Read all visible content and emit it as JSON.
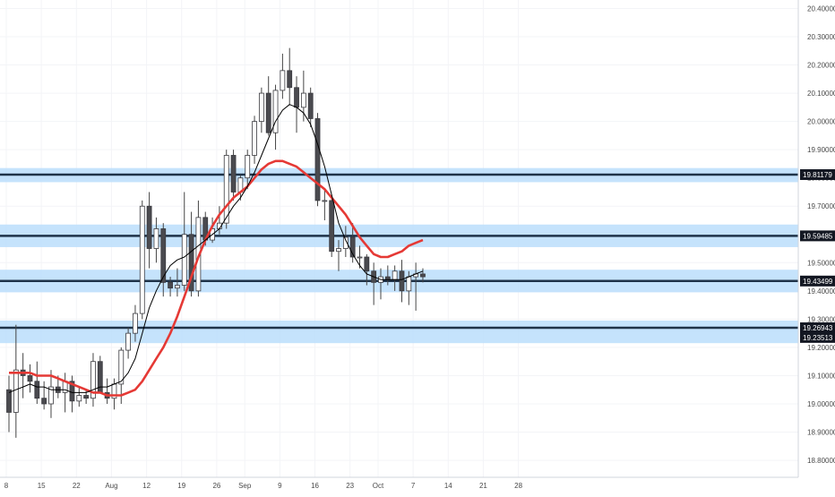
{
  "chart_data": {
    "type": "candlestick",
    "title": "",
    "ylim": [
      18.74,
      20.43
    ],
    "y_ticks": [
      "18.80000",
      "18.90000",
      "19.00000",
      "19.10000",
      "19.20000",
      "19.30000",
      "19.40000",
      "19.50000",
      "19.60000",
      "19.70000",
      "19.80000",
      "19.90000",
      "20.00000",
      "20.10000",
      "20.20000",
      "20.30000",
      "20.40000"
    ],
    "x_tick_labels": [
      {
        "label": "8",
        "index": 0
      },
      {
        "label": "15",
        "index": 5
      },
      {
        "label": "22",
        "index": 10
      },
      {
        "label": "Aug",
        "index": 15
      },
      {
        "label": "12",
        "index": 20
      },
      {
        "label": "19",
        "index": 25
      },
      {
        "label": "26",
        "index": 30
      },
      {
        "label": "Sep",
        "index": 34
      },
      {
        "label": "9",
        "index": 39
      },
      {
        "label": "16",
        "index": 44
      },
      {
        "label": "23",
        "index": 49
      },
      {
        "label": "Oct",
        "index": 53
      },
      {
        "label": "7",
        "index": 58
      },
      {
        "label": "14",
        "index": 63
      },
      {
        "label": "21",
        "index": 68
      },
      {
        "label": "28",
        "index": 73
      }
    ],
    "zones": [
      {
        "low": 19.785,
        "high": 19.835,
        "level": 19.81179
      },
      {
        "low": 19.555,
        "high": 19.635,
        "level": 19.59485
      },
      {
        "low": 19.395,
        "high": 19.475,
        "level": 19.43499
      },
      {
        "low": 19.215,
        "high": 19.295,
        "level": 19.26943
      }
    ],
    "price_labels": [
      "19.81179",
      "19.59485",
      "19.43499",
      "19.26943",
      "19.23513"
    ],
    "colors": {
      "zone_fill": "#bbdefb",
      "level_line": "#1f3349",
      "ma_fast": "#000000",
      "ma_slow": "#e53935",
      "bull": "#ffffff",
      "bear": "#4a4a4f",
      "wick": "#444444",
      "label_bg": "#131722",
      "label_text": "#ffffff",
      "axis_text": "#4a4a4a"
    },
    "candles": [
      [
        19.05,
        19.1,
        18.9,
        18.97
      ],
      [
        18.97,
        19.28,
        18.88,
        19.12
      ],
      [
        19.12,
        19.18,
        19.02,
        19.1
      ],
      [
        19.1,
        19.14,
        19.04,
        19.08
      ],
      [
        19.08,
        19.15,
        19.0,
        19.02
      ],
      [
        19.02,
        19.08,
        18.98,
        19.0
      ],
      [
        19.0,
        19.12,
        18.95,
        19.06
      ],
      [
        19.06,
        19.1,
        19.02,
        19.04
      ],
      [
        19.04,
        19.11,
        18.97,
        19.08
      ],
      [
        19.08,
        19.1,
        18.97,
        19.01
      ],
      [
        19.01,
        19.06,
        18.99,
        19.03
      ],
      [
        19.03,
        19.05,
        19.0,
        19.02
      ],
      [
        19.02,
        19.18,
        18.99,
        19.15
      ],
      [
        19.15,
        19.17,
        19.04,
        19.04
      ],
      [
        19.04,
        19.09,
        19.0,
        19.02
      ],
      [
        19.02,
        19.09,
        18.98,
        19.07
      ],
      [
        19.07,
        19.2,
        19.0,
        19.19
      ],
      [
        19.19,
        19.27,
        19.16,
        19.25
      ],
      [
        19.25,
        19.35,
        19.22,
        19.32
      ],
      [
        19.32,
        19.72,
        19.3,
        19.7
      ],
      [
        19.7,
        19.75,
        19.48,
        19.55
      ],
      [
        19.55,
        19.66,
        19.5,
        19.62
      ],
      [
        19.62,
        19.64,
        19.38,
        19.43
      ],
      [
        19.43,
        19.45,
        19.38,
        19.41
      ],
      [
        19.41,
        19.48,
        19.38,
        19.42
      ],
      [
        19.42,
        19.75,
        19.4,
        19.6
      ],
      [
        19.6,
        19.68,
        19.38,
        19.4
      ],
      [
        19.4,
        19.72,
        19.38,
        19.66
      ],
      [
        19.66,
        19.68,
        19.56,
        19.58
      ],
      [
        19.58,
        19.66,
        19.57,
        19.62
      ],
      [
        19.62,
        19.7,
        19.6,
        19.64
      ],
      [
        19.64,
        19.9,
        19.62,
        19.88
      ],
      [
        19.88,
        19.9,
        19.72,
        19.75
      ],
      [
        19.75,
        19.81,
        19.72,
        19.8
      ],
      [
        19.8,
        19.9,
        19.76,
        19.88
      ],
      [
        19.88,
        20.02,
        19.85,
        20.0
      ],
      [
        20.0,
        20.12,
        19.96,
        20.1
      ],
      [
        20.1,
        20.16,
        19.95,
        19.96
      ],
      [
        19.96,
        20.13,
        19.9,
        20.11
      ],
      [
        20.11,
        20.24,
        20.08,
        20.18
      ],
      [
        20.18,
        20.26,
        20.06,
        20.12
      ],
      [
        20.12,
        20.16,
        19.96,
        20.05
      ],
      [
        20.05,
        20.18,
        20.0,
        20.1
      ],
      [
        20.1,
        20.12,
        19.98,
        20.01
      ],
      [
        20.01,
        20.03,
        19.7,
        19.72
      ],
      [
        19.72,
        19.76,
        19.65,
        19.72
      ],
      [
        19.72,
        19.74,
        19.52,
        19.54
      ],
      [
        19.54,
        19.58,
        19.47,
        19.55
      ],
      [
        19.55,
        19.63,
        19.52,
        19.59
      ],
      [
        19.59,
        19.64,
        19.5,
        19.52
      ],
      [
        19.52,
        19.56,
        19.48,
        19.52
      ],
      [
        19.52,
        19.53,
        19.42,
        19.47
      ],
      [
        19.47,
        19.5,
        19.35,
        19.43
      ],
      [
        19.43,
        19.48,
        19.37,
        19.45
      ],
      [
        19.45,
        19.49,
        19.42,
        19.44
      ],
      [
        19.44,
        19.49,
        19.4,
        19.47
      ],
      [
        19.47,
        19.51,
        19.36,
        19.4
      ],
      [
        19.4,
        19.47,
        19.35,
        19.45
      ],
      [
        19.45,
        19.5,
        19.33,
        19.46
      ],
      [
        19.46,
        19.48,
        19.43,
        19.45
      ]
    ],
    "ma_fast": [
      19.04,
      19.05,
      19.06,
      19.07,
      19.06,
      19.06,
      19.05,
      19.05,
      19.05,
      19.04,
      19.04,
      19.04,
      19.05,
      19.06,
      19.06,
      19.07,
      19.08,
      19.11,
      19.16,
      19.25,
      19.34,
      19.4,
      19.45,
      19.49,
      19.51,
      19.52,
      19.54,
      19.56,
      19.58,
      19.6,
      19.62,
      19.66,
      19.7,
      19.73,
      19.77,
      19.82,
      19.88,
      19.94,
      20.0,
      20.04,
      20.06,
      20.05,
      20.03,
      19.99,
      19.92,
      19.84,
      19.74,
      19.64,
      19.58,
      19.53,
      19.49,
      19.46,
      19.45,
      19.44,
      19.44,
      19.44,
      19.44,
      19.45,
      19.46,
      19.47
    ],
    "ma_slow": [
      19.11,
      19.11,
      19.11,
      19.11,
      19.1,
      19.1,
      19.1,
      19.09,
      19.08,
      19.07,
      19.06,
      19.05,
      19.04,
      19.04,
      19.03,
      19.03,
      19.03,
      19.04,
      19.05,
      19.08,
      19.12,
      19.16,
      19.2,
      19.25,
      19.31,
      19.38,
      19.45,
      19.52,
      19.58,
      19.63,
      19.67,
      19.7,
      19.73,
      19.75,
      19.77,
      19.8,
      19.83,
      19.85,
      19.86,
      19.86,
      19.85,
      19.84,
      19.82,
      19.8,
      19.78,
      19.76,
      19.73,
      19.7,
      19.67,
      19.63,
      19.59,
      19.56,
      19.53,
      19.52,
      19.52,
      19.53,
      19.54,
      19.56,
      19.57,
      19.58
    ]
  }
}
